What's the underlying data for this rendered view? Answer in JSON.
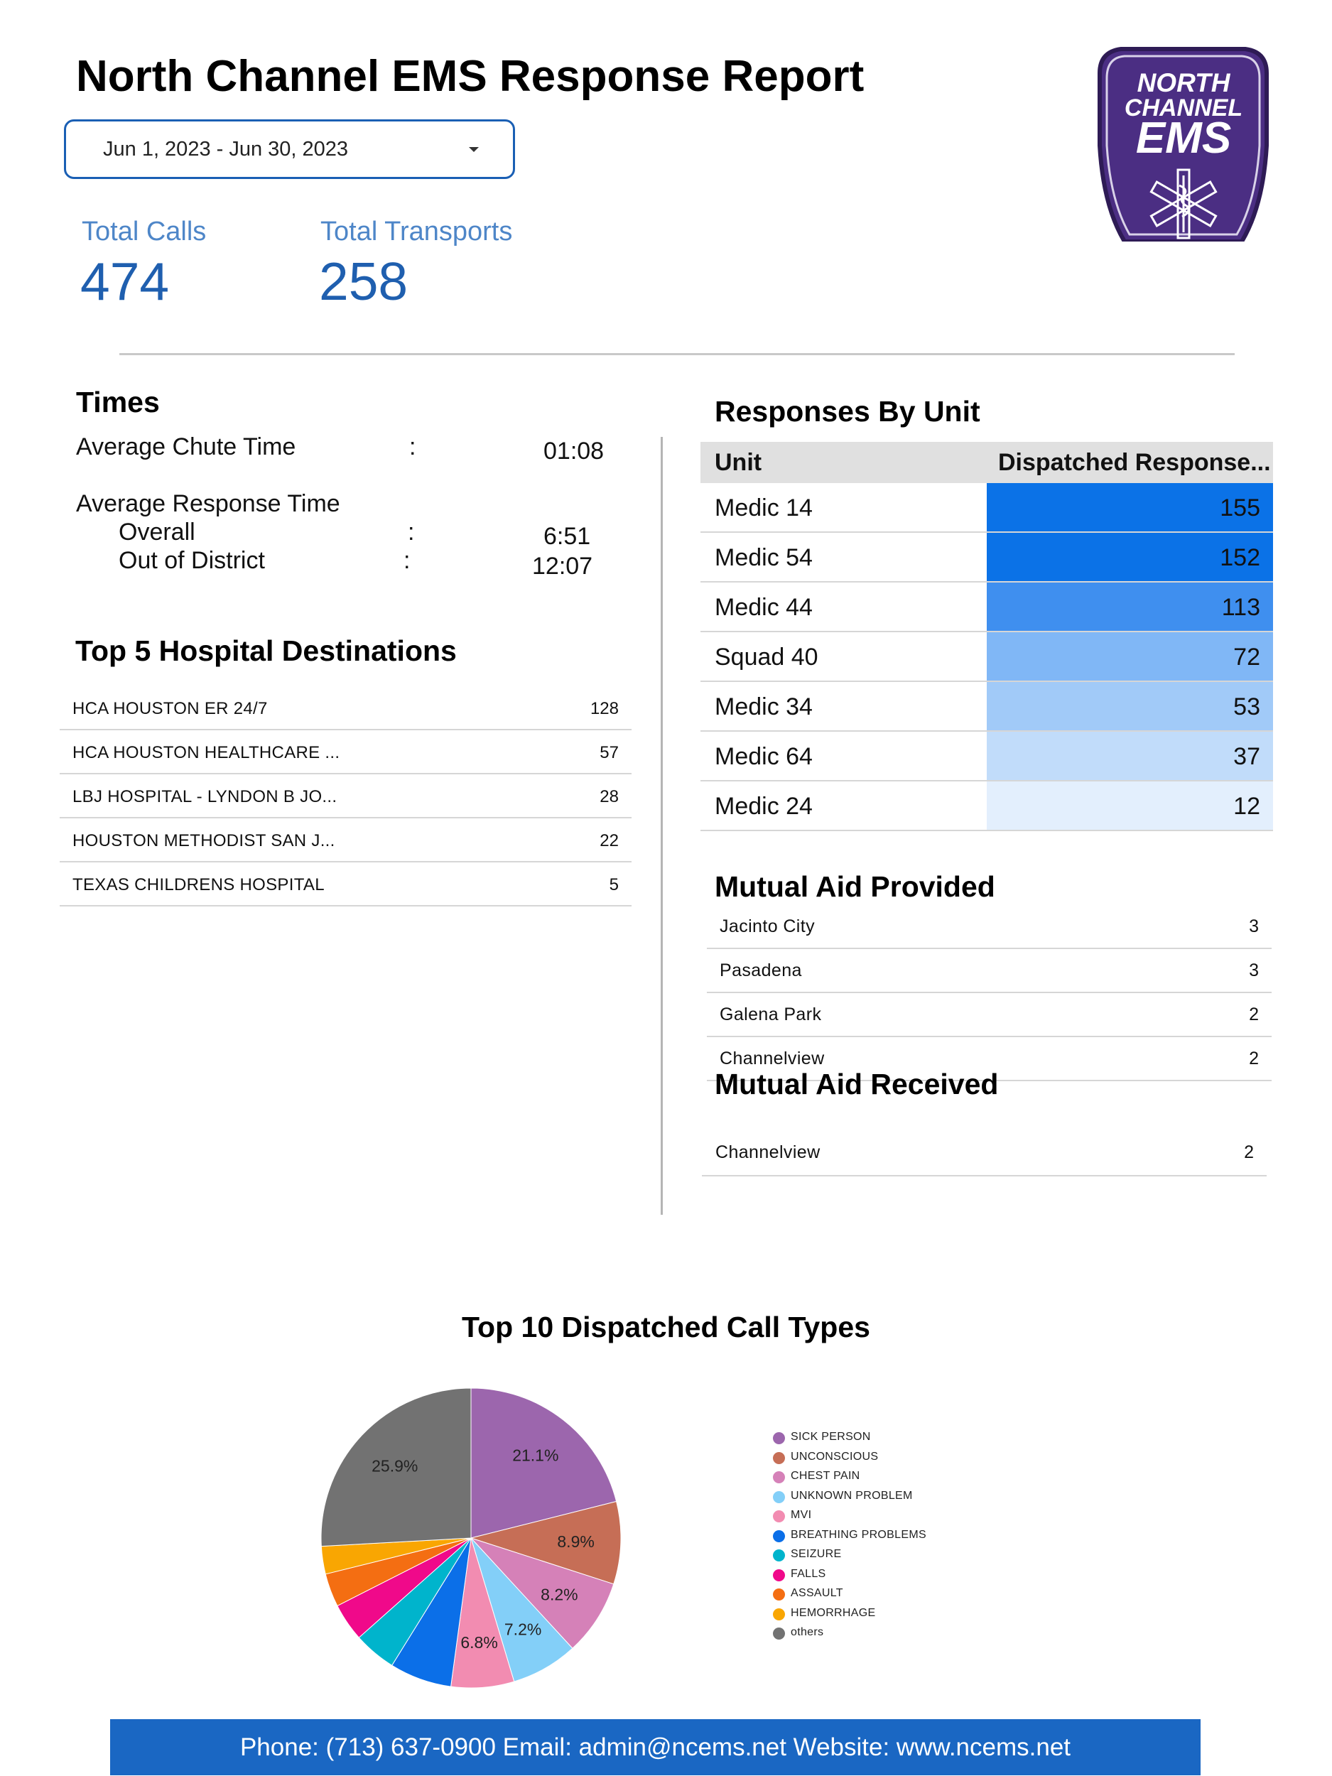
{
  "title": "North Channel EMS Response Report",
  "date_range": "Jun 1, 2023 - Jun 30, 2023",
  "kpis": {
    "total_calls_label": "Total Calls",
    "total_calls_value": "474",
    "total_transports_label": "Total Transports",
    "total_transports_value": "258"
  },
  "logo": {
    "line1": "NORTH",
    "line2": "CHANNEL",
    "line3": "EMS",
    "color": "#4b2e83"
  },
  "times": {
    "title": "Times",
    "avg_chute_label": "Average Chute Time",
    "avg_chute_value": "01:08",
    "avg_response_label": "Average Response Time",
    "overall_label": "Overall",
    "overall_value": "6:51",
    "ood_label": "Out of District",
    "ood_value": "12:07",
    "colon": ":"
  },
  "hospitals": {
    "title": "Top 5 Hospital Destinations",
    "rows": [
      {
        "name": "HCA HOUSTON ER 24/7",
        "value": "128"
      },
      {
        "name": "HCA HOUSTON HEALTHCARE ...",
        "value": "57"
      },
      {
        "name": "LBJ HOSPITAL - LYNDON B JO...",
        "value": "28"
      },
      {
        "name": "HOUSTON METHODIST SAN J...",
        "value": "22"
      },
      {
        "name": "TEXAS CHILDRENS HOSPITAL",
        "value": "5"
      }
    ]
  },
  "units": {
    "title": "Responses By Unit",
    "col_unit": "Unit",
    "col_dispatched": "Dispatched Response...",
    "rows": [
      {
        "name": "Medic 14",
        "value": "155",
        "color": "#0b72e7"
      },
      {
        "name": "Medic 54",
        "value": "152",
        "color": "#0b72e7"
      },
      {
        "name": "Medic 44",
        "value": "113",
        "color": "#3f8fef"
      },
      {
        "name": "Squad 40",
        "value": "72",
        "color": "#80b7f6"
      },
      {
        "name": "Medic 34",
        "value": "53",
        "color": "#a1caf8"
      },
      {
        "name": "Medic 64",
        "value": "37",
        "color": "#c1dcfa"
      },
      {
        "name": "Medic 24",
        "value": "12",
        "color": "#e3effd"
      }
    ]
  },
  "aid_provided": {
    "title": "Mutual Aid Provided",
    "rows": [
      {
        "name": "Jacinto City",
        "value": "3"
      },
      {
        "name": "Pasadena",
        "value": "3"
      },
      {
        "name": "Galena Park",
        "value": "2"
      },
      {
        "name": "Channelview",
        "value": "2"
      }
    ]
  },
  "aid_received": {
    "title": "Mutual Aid Received",
    "rows": [
      {
        "name": "Channelview",
        "value": "2"
      }
    ]
  },
  "chart_data": {
    "type": "pie",
    "title": "Top 10 Dispatched Call Types",
    "categories": [
      "SICK PERSON",
      "UNCONSCIOUS",
      "CHEST PAIN",
      "UNKNOWN PROBLEM",
      "MVI",
      "BREATHING PROBLEMS",
      "SEIZURE",
      "FALLS",
      "ASSAULT",
      "HEMORRHAGE",
      "others"
    ],
    "values": [
      21.1,
      8.9,
      8.2,
      7.2,
      6.8,
      6.7,
      4.6,
      4.1,
      3.6,
      3.0,
      25.9
    ],
    "value_labels": [
      "21.1%",
      "8.9%",
      "8.2%",
      "7.2%",
      "6.8%",
      "",
      "",
      "",
      "",
      "",
      "25.9%"
    ],
    "colors": [
      "#9c66ad",
      "#c66e56",
      "#d581b8",
      "#83cff8",
      "#f28cb1",
      "#0b6fe8",
      "#00b4cc",
      "#f0098a",
      "#f46e12",
      "#f9a602",
      "#727272"
    ],
    "legend_placement": "right"
  },
  "footer": "Phone: (713) 637-0900 Email: admin@ncems.net Website: www.ncems.net"
}
